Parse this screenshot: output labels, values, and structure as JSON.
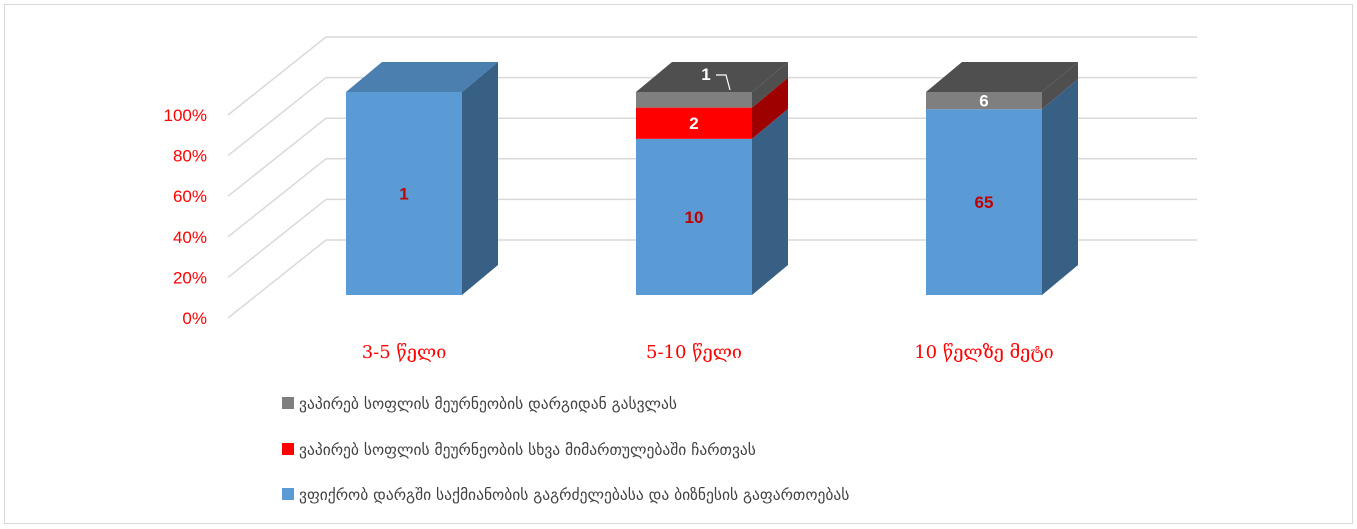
{
  "chart_data": {
    "type": "bar",
    "stacked": "percent",
    "three_d": true,
    "categories": [
      "3-5 წელი",
      "5-10 წელი",
      "10 წელზე მეტი"
    ],
    "series": [
      {
        "name": "ვფიქრობ დარგში საქმიანობის გაგრძელებასა და ბიზნესის გაფართოებას",
        "values": [
          1,
          10,
          65
        ],
        "color": "#5b9bd5",
        "label_color": "#c00000"
      },
      {
        "name": "ვაპირებ სოფლის მეურნეობის სხვა მიმართულებაში ჩართვას",
        "values": [
          0,
          2,
          0
        ],
        "color": "#ff0000",
        "label_color": "#ffffff"
      },
      {
        "name": "ვაპირებ სოფლის მეურნეობის დარგიდან გასვლას",
        "values": [
          0,
          1,
          6
        ],
        "color": "#7f7f7f",
        "label_color": "#ffffff"
      }
    ],
    "y_ticks": [
      "0%",
      "20%",
      "40%",
      "60%",
      "80%",
      "100%"
    ],
    "ylim": [
      0,
      100
    ],
    "grid": true,
    "legend_position": "bottom",
    "colors": {
      "axis_text": "#ff0000",
      "grid": "#d9d9d9"
    }
  }
}
